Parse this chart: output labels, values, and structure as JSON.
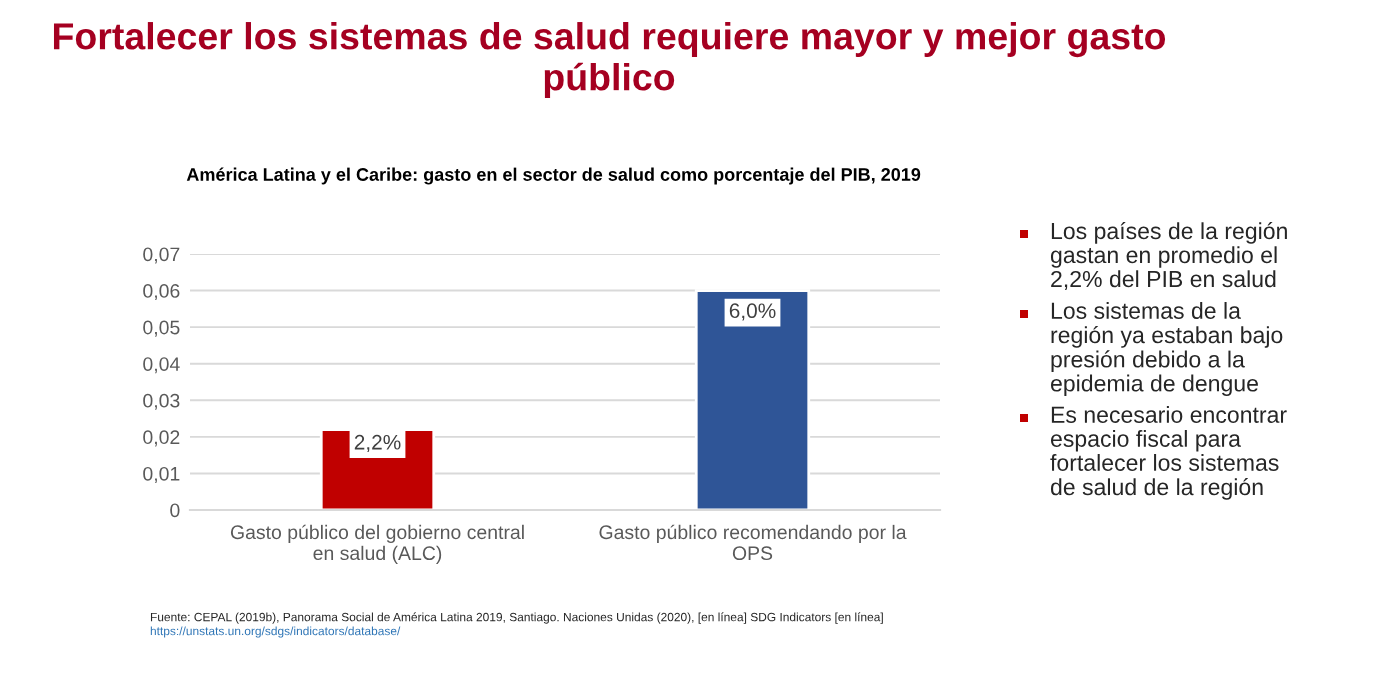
{
  "chart_data": {
    "type": "bar",
    "title": "Fortalecer los sistemas de salud requiere mayor y mejor gasto público",
    "subtitle": "América Latina y el Caribe: gasto en el sector de salud como porcentaje del PIB, 2019",
    "categories": [
      "Gasto público del gobierno central en salud (ALC)",
      "Gasto público recomendando por la OPS"
    ],
    "values": [
      0.022,
      0.06
    ],
    "colors": [
      "#c00000",
      "#2f5597"
    ],
    "value_labels": [
      "2,2%",
      "6,0%"
    ],
    "ylim": [
      0,
      0.07
    ],
    "yticks": [
      {
        "value": 0,
        "label": "0"
      },
      {
        "value": 0.01,
        "label": "0,01"
      },
      {
        "value": 0.02,
        "label": "0,02"
      },
      {
        "value": 0.03,
        "label": "0,03"
      },
      {
        "value": 0.04,
        "label": "0,04"
      },
      {
        "value": 0.05,
        "label": "0,05"
      },
      {
        "value": 0.06,
        "label": "0,06"
      },
      {
        "value": 0.07,
        "label": "0,07"
      }
    ],
    "grid": "y",
    "annotations": [
      "Los países de la región gastan en promedio el 2,2% del PIB en salud",
      "Los sistemas de la región ya estaban bajo presión debido a la epidemia de dengue",
      "Es necesario encontrar espacio fiscal para fortalecer los sistemas de salud de la región",
      "Fuente: CEPAL (2019b), Panorama Social de América Latina 2019, Santiago. Naciones Unidas (2020), [en línea] SDG Indicators [en línea]",
      "https://unstats.un.org/sdgs/indicators/database/"
    ]
  }
}
